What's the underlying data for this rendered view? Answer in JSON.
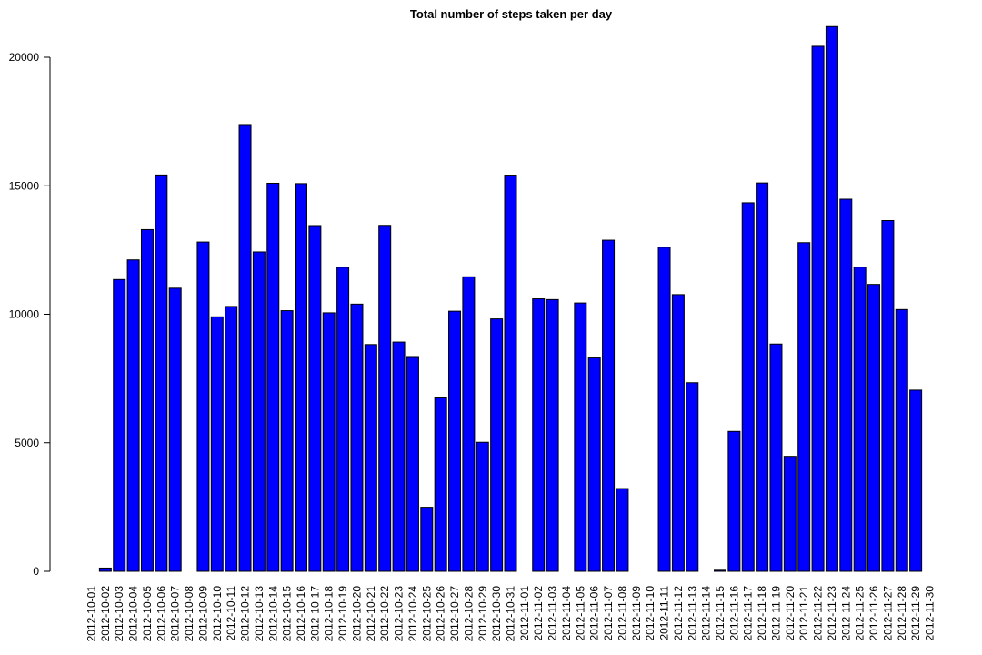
{
  "chart_data": {
    "type": "bar",
    "title": "Total number of steps taken per day",
    "xlabel": "",
    "ylabel": "",
    "ylim": [
      0,
      21500
    ],
    "yticks": [
      0,
      5000,
      10000,
      15000,
      20000
    ],
    "grid": false,
    "legend": "none",
    "bar_color": "#0000FF",
    "bar_border_color": "#000000",
    "categories": [
      "2012-10-01",
      "2012-10-02",
      "2012-10-03",
      "2012-10-04",
      "2012-10-05",
      "2012-10-06",
      "2012-10-07",
      "2012-10-08",
      "2012-10-09",
      "2012-10-10",
      "2012-10-11",
      "2012-10-12",
      "2012-10-13",
      "2012-10-14",
      "2012-10-15",
      "2012-10-16",
      "2012-10-17",
      "2012-10-18",
      "2012-10-19",
      "2012-10-20",
      "2012-10-21",
      "2012-10-22",
      "2012-10-23",
      "2012-10-24",
      "2012-10-25",
      "2012-10-26",
      "2012-10-27",
      "2012-10-28",
      "2012-10-29",
      "2012-10-30",
      "2012-10-31",
      "2012-11-01",
      "2012-11-02",
      "2012-11-03",
      "2012-11-04",
      "2012-11-05",
      "2012-11-06",
      "2012-11-07",
      "2012-11-08",
      "2012-11-09",
      "2012-11-10",
      "2012-11-11",
      "2012-11-12",
      "2012-11-13",
      "2012-11-14",
      "2012-11-15",
      "2012-11-16",
      "2012-11-17",
      "2012-11-18",
      "2012-11-19",
      "2012-11-20",
      "2012-11-21",
      "2012-11-22",
      "2012-11-23",
      "2012-11-24",
      "2012-11-25",
      "2012-11-26",
      "2012-11-27",
      "2012-11-28",
      "2012-11-29",
      "2012-11-30"
    ],
    "values": [
      0,
      126,
      11352,
      12116,
      13294,
      15420,
      11015,
      0,
      12811,
      9900,
      10304,
      17382,
      12426,
      15098,
      10139,
      15084,
      13452,
      10056,
      11829,
      10395,
      8821,
      13460,
      8918,
      8355,
      2492,
      6778,
      10119,
      11458,
      5018,
      9819,
      15414,
      0,
      10600,
      10571,
      0,
      10439,
      8334,
      12883,
      3219,
      0,
      0,
      12608,
      10765,
      7336,
      0,
      41,
      5441,
      14339,
      15110,
      8841,
      4472,
      12787,
      20427,
      21194,
      14478,
      11834,
      11162,
      13646,
      10183,
      7047,
      0
    ]
  }
}
